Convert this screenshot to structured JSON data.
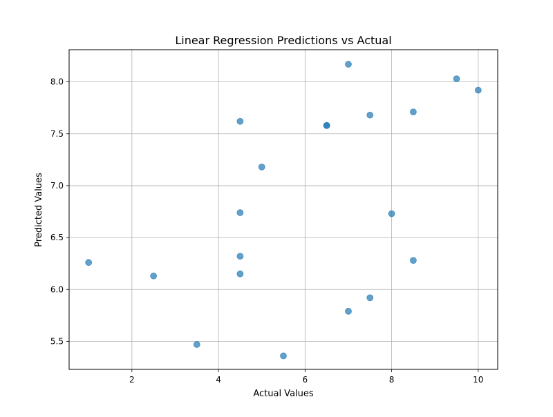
{
  "chart_data": {
    "type": "scatter",
    "title": "Linear Regression Predictions vs Actual",
    "xlabel": "Actual Values",
    "ylabel": "Predicted Values",
    "xlim": [
      0.55,
      10.45
    ],
    "ylim": [
      5.23,
      8.31
    ],
    "xticks": [
      2,
      4,
      6,
      8,
      10
    ],
    "xtick_labels": [
      "2",
      "4",
      "6",
      "8",
      "10"
    ],
    "yticks": [
      5.5,
      6.0,
      6.5,
      7.0,
      7.5,
      8.0
    ],
    "ytick_labels": [
      "5.5",
      "6.0",
      "6.5",
      "7.0",
      "7.5",
      "8.0"
    ],
    "grid": true,
    "marker_color": "#1f77b4",
    "marker_alpha": 0.7,
    "points": [
      {
        "x": 1.0,
        "y": 6.26
      },
      {
        "x": 2.5,
        "y": 6.13
      },
      {
        "x": 3.5,
        "y": 5.47
      },
      {
        "x": 4.5,
        "y": 7.62
      },
      {
        "x": 4.5,
        "y": 6.74
      },
      {
        "x": 4.5,
        "y": 6.32
      },
      {
        "x": 4.5,
        "y": 6.15
      },
      {
        "x": 5.0,
        "y": 7.18
      },
      {
        "x": 5.5,
        "y": 5.36
      },
      {
        "x": 6.5,
        "y": 7.58
      },
      {
        "x": 6.5,
        "y": 7.58
      },
      {
        "x": 7.0,
        "y": 8.17
      },
      {
        "x": 7.0,
        "y": 5.79
      },
      {
        "x": 7.5,
        "y": 7.68
      },
      {
        "x": 7.5,
        "y": 5.92
      },
      {
        "x": 8.0,
        "y": 6.73
      },
      {
        "x": 8.5,
        "y": 7.71
      },
      {
        "x": 8.5,
        "y": 6.28
      },
      {
        "x": 9.5,
        "y": 8.03
      },
      {
        "x": 10.0,
        "y": 7.92
      }
    ]
  }
}
